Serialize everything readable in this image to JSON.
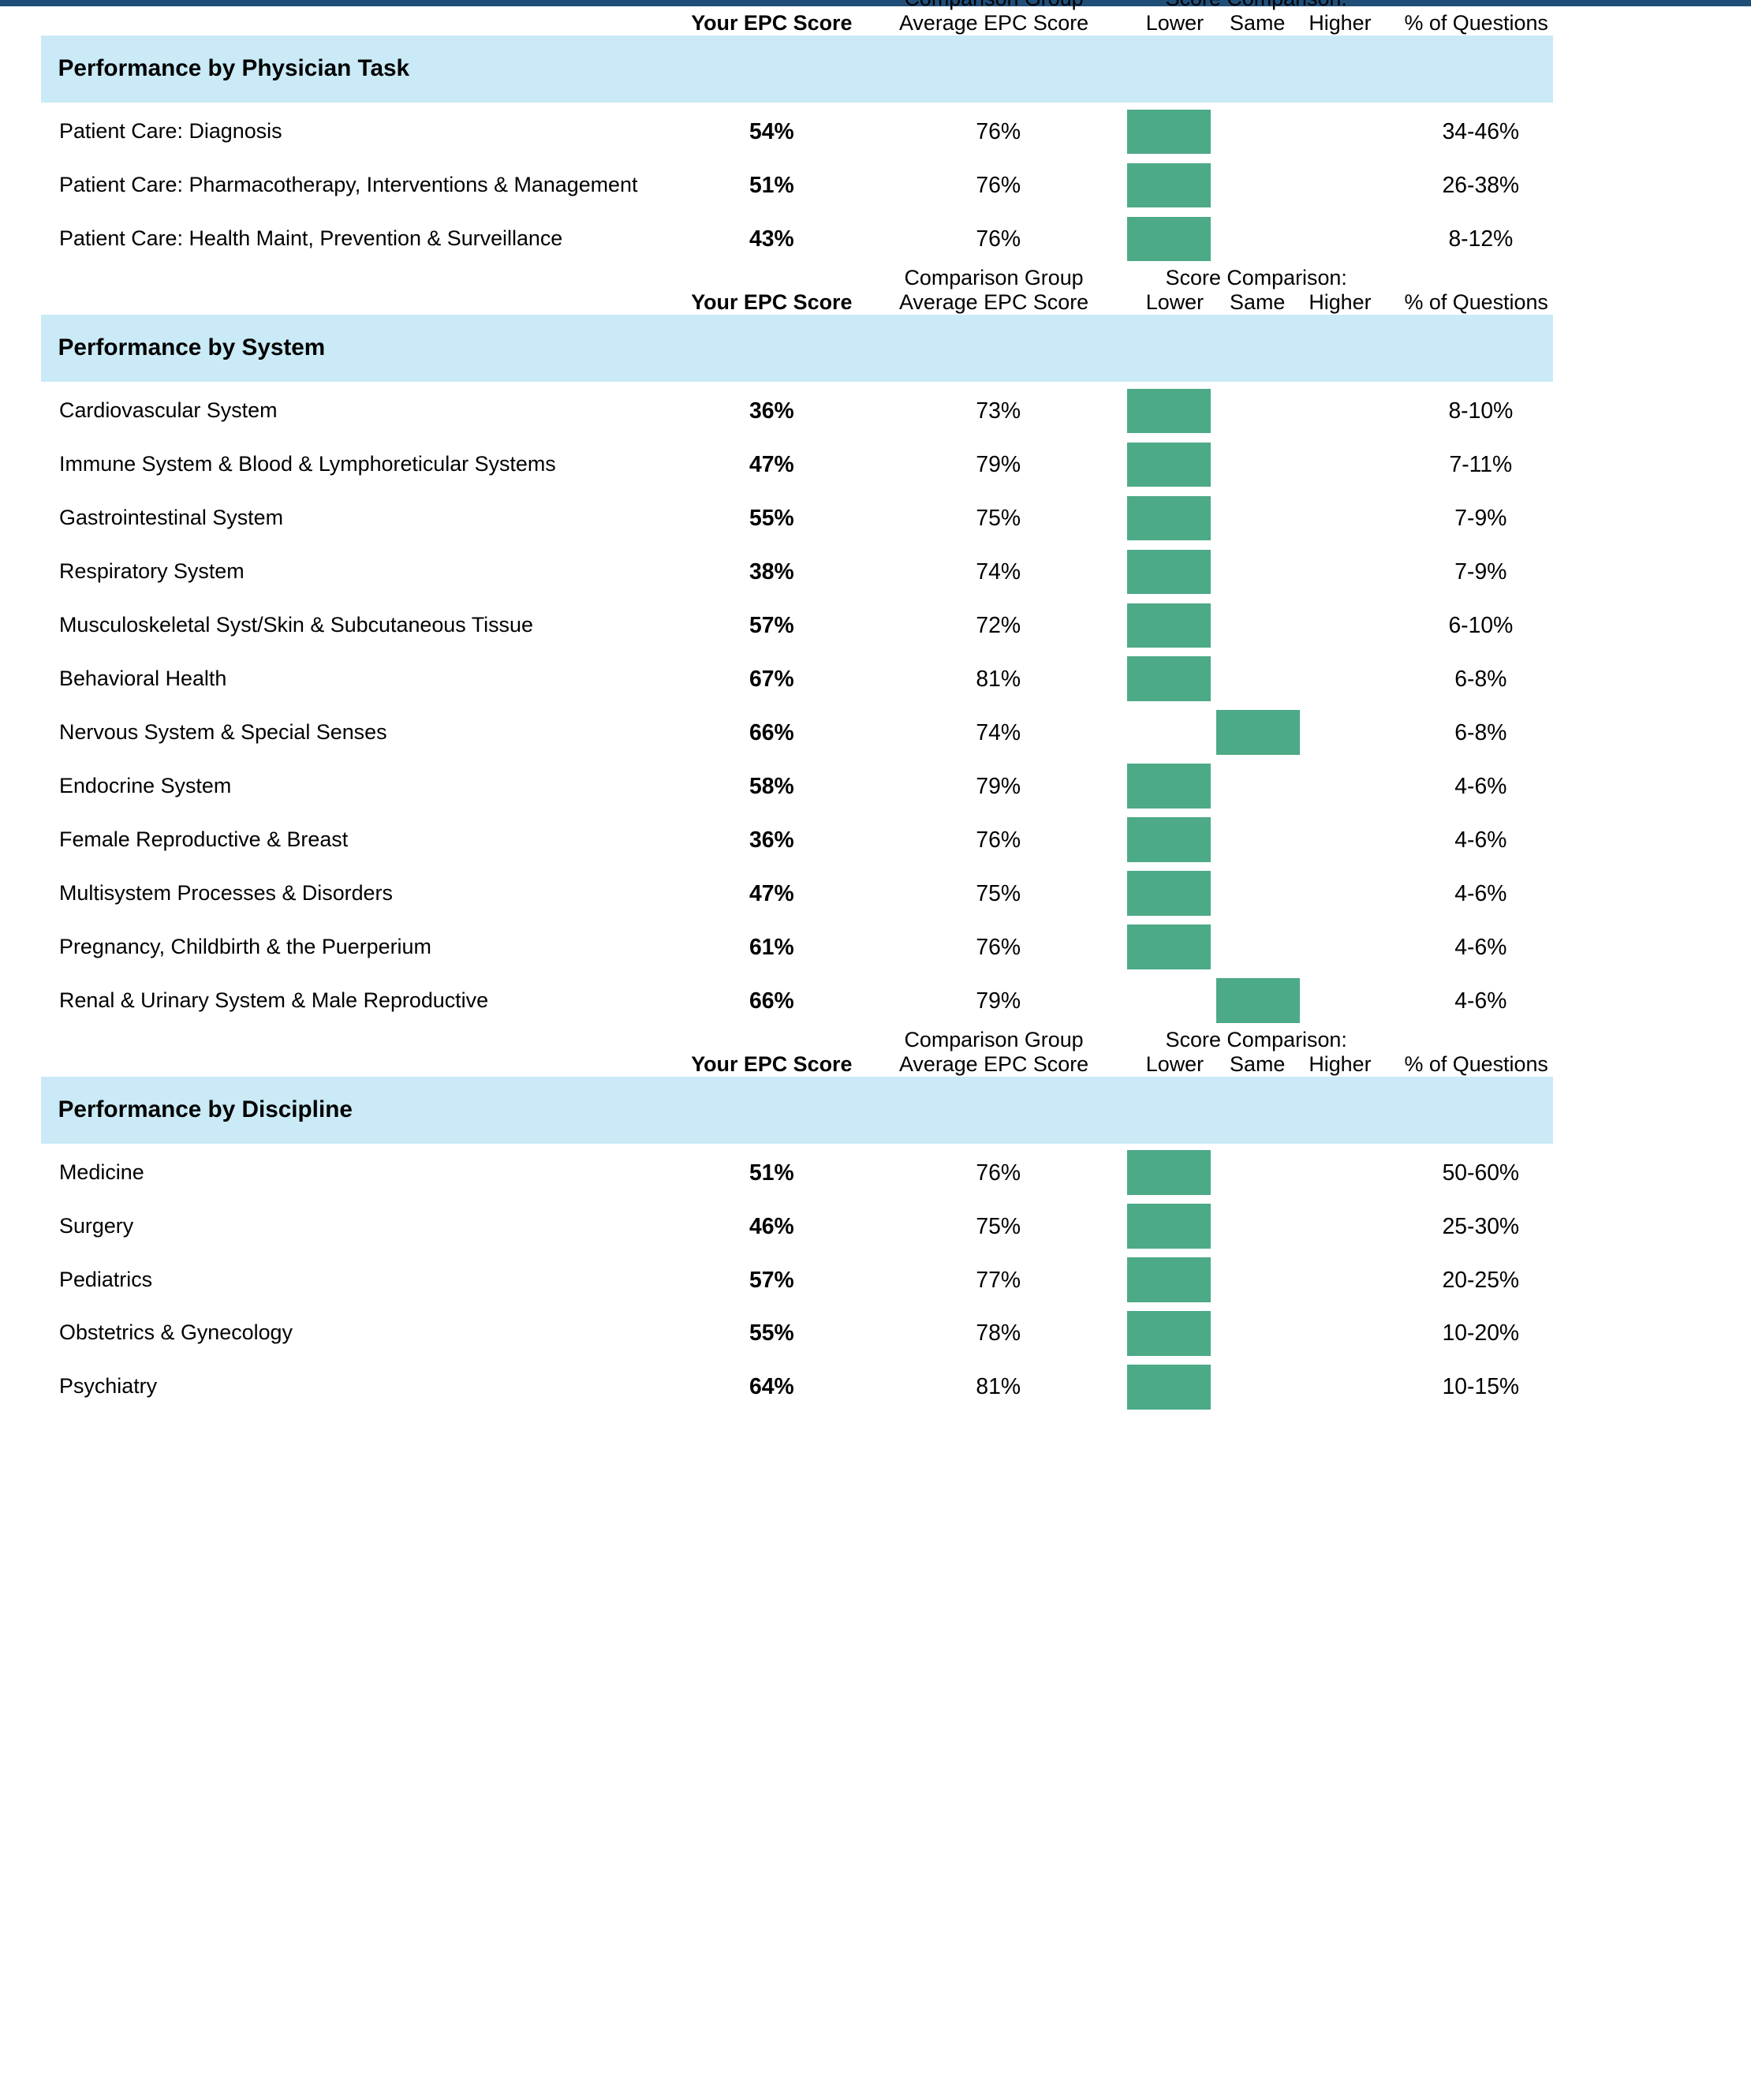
{
  "headers": {
    "your_score": "Your EPC Score",
    "comparison_group": "Comparison Group",
    "average_score": "Average EPC Score",
    "score_comparison": "Score Comparison:",
    "lower": "Lower",
    "same": "Same",
    "higher": "Higher",
    "pct_questions": "% of Questions"
  },
  "colors": {
    "section_band": "#c9eaf6",
    "comparison_bar": "#4daa86",
    "top_bar": "#1f4e79"
  },
  "sections": [
    {
      "title": "Performance by Physician Task",
      "rows": [
        {
          "name": "Patient Care: Diagnosis",
          "your": "54%",
          "avg": "76%",
          "comparison": "lower",
          "pct": "34-46%"
        },
        {
          "name": "Patient Care: Pharmacotherapy, Interventions & Management",
          "your": "51%",
          "avg": "76%",
          "comparison": "lower",
          "pct": "26-38%"
        },
        {
          "name": "Patient Care: Health Maint, Prevention & Surveillance",
          "your": "43%",
          "avg": "76%",
          "comparison": "lower",
          "pct": "8-12%"
        }
      ]
    },
    {
      "title": "Performance by System",
      "rows": [
        {
          "name": "Cardiovascular System",
          "your": "36%",
          "avg": "73%",
          "comparison": "lower",
          "pct": "8-10%"
        },
        {
          "name": "Immune System & Blood & Lymphoreticular Systems",
          "your": "47%",
          "avg": "79%",
          "comparison": "lower",
          "pct": "7-11%"
        },
        {
          "name": "Gastrointestinal System",
          "your": "55%",
          "avg": "75%",
          "comparison": "lower",
          "pct": "7-9%"
        },
        {
          "name": "Respiratory System",
          "your": "38%",
          "avg": "74%",
          "comparison": "lower",
          "pct": "7-9%"
        },
        {
          "name": "Musculoskeletal Syst/Skin & Subcutaneous Tissue",
          "your": "57%",
          "avg": "72%",
          "comparison": "lower",
          "pct": "6-10%"
        },
        {
          "name": "Behavioral Health",
          "your": "67%",
          "avg": "81%",
          "comparison": "lower",
          "pct": "6-8%"
        },
        {
          "name": "Nervous System & Special Senses",
          "your": "66%",
          "avg": "74%",
          "comparison": "same",
          "pct": "6-8%"
        },
        {
          "name": "Endocrine System",
          "your": "58%",
          "avg": "79%",
          "comparison": "lower",
          "pct": "4-6%"
        },
        {
          "name": "Female Reproductive & Breast",
          "your": "36%",
          "avg": "76%",
          "comparison": "lower",
          "pct": "4-6%"
        },
        {
          "name": "Multisystem Processes & Disorders",
          "your": "47%",
          "avg": "75%",
          "comparison": "lower",
          "pct": "4-6%"
        },
        {
          "name": "Pregnancy, Childbirth & the Puerperium",
          "your": "61%",
          "avg": "76%",
          "comparison": "lower",
          "pct": "4-6%"
        },
        {
          "name": "Renal & Urinary System & Male Reproductive",
          "your": "66%",
          "avg": "79%",
          "comparison": "same",
          "pct": "4-6%"
        }
      ]
    },
    {
      "title": "Performance by Discipline",
      "rows": [
        {
          "name": "Medicine",
          "your": "51%",
          "avg": "76%",
          "comparison": "lower",
          "pct": "50-60%"
        },
        {
          "name": "Surgery",
          "your": "46%",
          "avg": "75%",
          "comparison": "lower",
          "pct": "25-30%"
        },
        {
          "name": "Pediatrics",
          "your": "57%",
          "avg": "77%",
          "comparison": "lower",
          "pct": "20-25%"
        },
        {
          "name": "Obstetrics & Gynecology",
          "your": "55%",
          "avg": "78%",
          "comparison": "lower",
          "pct": "10-20%"
        },
        {
          "name": "Psychiatry",
          "your": "64%",
          "avg": "81%",
          "comparison": "lower",
          "pct": "10-15%"
        }
      ]
    }
  ]
}
